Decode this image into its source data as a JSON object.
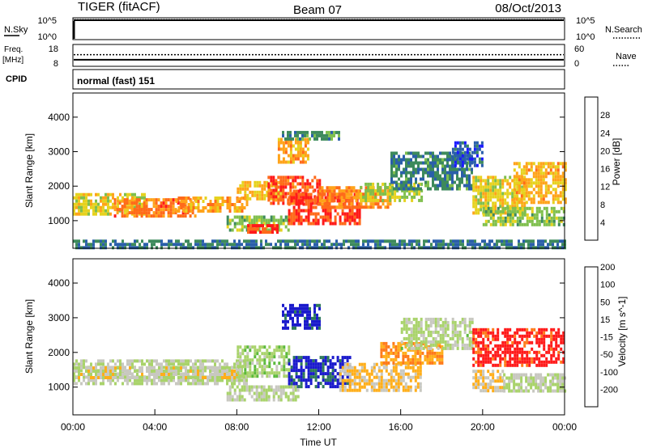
{
  "header": {
    "station": "TIGER (fitACF)",
    "beam": "Beam 07",
    "date": "08/Oct/2013"
  },
  "left_labels": {
    "nsky": "N.Sky",
    "freq_line1": "Freq.",
    "freq_line2": "[MHz]",
    "cpid": "CPID"
  },
  "right_labels": {
    "nsearch": "N.Search",
    "nave": "Nave"
  },
  "noise_panel": {
    "left_ticks": [
      "10^5",
      "10^0"
    ],
    "right_ticks": [
      "10^5",
      "10^0"
    ]
  },
  "freq_panel": {
    "left_ticks": [
      "18",
      "8"
    ],
    "right_ticks": [
      "60",
      "0"
    ],
    "freq_mhz": 11,
    "nave": 32
  },
  "cpid_text": "normal (fast) 151",
  "colors": {
    "power": [
      "#1a1aff",
      "#2a5faa",
      "#3d8a5c",
      "#7fbf4d",
      "#e6d21e",
      "#ffa31a",
      "#ff6a1a",
      "#ff1a1a"
    ],
    "velocity": [
      "#ff1a1a",
      "#ff7a1a",
      "#ffae1a",
      "#c8c8c0",
      "#a9d36b",
      "#5cba3c",
      "#2f7a5a",
      "#1a1acc"
    ],
    "ground_gray": "#c8c8c0"
  },
  "chart_data": [
    {
      "type": "heatmap",
      "quantity": "Power",
      "colorbar_label": "Power [dB]",
      "colorbar_ticks": [
        "4",
        "8",
        "12",
        "16",
        "20",
        "24",
        "28"
      ],
      "crange": [
        0,
        32
      ],
      "ylabel": "Slant Range [km]",
      "yticks": [
        "1000",
        "2000",
        "3000",
        "4000"
      ],
      "ylim": [
        200,
        4700
      ],
      "xlim": [
        0,
        24
      ],
      "features": [
        {
          "t": [
            0,
            3.5
          ],
          "r": [
            1150,
            1800
          ],
          "level": 18
        },
        {
          "t": [
            2,
            6
          ],
          "r": [
            1150,
            1650
          ],
          "level": 25
        },
        {
          "t": [
            5,
            8.5
          ],
          "r": [
            1300,
            1700
          ],
          "level": 22
        },
        {
          "t": [
            8,
            10.2
          ],
          "r": [
            1600,
            2150
          ],
          "level": 20
        },
        {
          "t": [
            9.5,
            12
          ],
          "r": [
            1500,
            2300
          ],
          "level": 27
        },
        {
          "t": [
            7.5,
            10.5
          ],
          "r": [
            700,
            1150
          ],
          "level": 14
        },
        {
          "t": [
            8.5,
            10
          ],
          "r": [
            650,
            900
          ],
          "level": 28
        },
        {
          "t": [
            10.5,
            14
          ],
          "r": [
            900,
            1900
          ],
          "level": 28
        },
        {
          "t": [
            12,
            15.5
          ],
          "r": [
            1400,
            2000
          ],
          "level": 24
        },
        {
          "t": [
            14,
            17
          ],
          "r": [
            1600,
            2100
          ],
          "level": 16
        },
        {
          "t": [
            15.5,
            19.5
          ],
          "r": [
            1900,
            3000
          ],
          "level": 9
        },
        {
          "t": [
            10,
            11.5
          ],
          "r": [
            2700,
            3400
          ],
          "level": 22
        },
        {
          "t": [
            10.2,
            13
          ],
          "r": [
            3400,
            3600
          ],
          "level": 10
        },
        {
          "t": [
            18.5,
            20
          ],
          "r": [
            2600,
            3300
          ],
          "level": 6
        },
        {
          "t": [
            19.5,
            22
          ],
          "r": [
            1200,
            2300
          ],
          "level": 18
        },
        {
          "t": [
            21.5,
            24
          ],
          "r": [
            1500,
            2700
          ],
          "level": 21
        },
        {
          "t": [
            20,
            24
          ],
          "r": [
            850,
            1400
          ],
          "level": 14
        },
        {
          "t": [
            0,
            24
          ],
          "r": [
            250,
            450
          ],
          "level": 8
        }
      ]
    },
    {
      "type": "heatmap",
      "quantity": "Velocity",
      "colorbar_label": "Velocity [m s^-1]",
      "colorbar_ticks": [
        "-200",
        "-100",
        "-50",
        "-15",
        "15",
        "50",
        "100",
        "200"
      ],
      "crange": [
        -250,
        250
      ],
      "ylabel": "Slant Range [km]",
      "yticks": [
        "1000",
        "2000",
        "3000",
        "4000"
      ],
      "ylim": [
        200,
        4700
      ],
      "xlim": [
        0,
        24
      ],
      "xlabel": "Time UT",
      "xticks": [
        "00:00",
        "04:00",
        "08:00",
        "12:00",
        "16:00",
        "20:00",
        "00:00"
      ],
      "features": [
        {
          "t": [
            0,
            8.5
          ],
          "r": [
            1100,
            1800
          ],
          "level": 0
        },
        {
          "t": [
            0,
            8
          ],
          "r": [
            1300,
            1600
          ],
          "level": -30
        },
        {
          "t": [
            8,
            10.5
          ],
          "r": [
            1300,
            2200
          ],
          "level": 40
        },
        {
          "t": [
            10.5,
            13.5
          ],
          "r": [
            1000,
            1900
          ],
          "level": 210
        },
        {
          "t": [
            13,
            17
          ],
          "r": [
            900,
            1700
          ],
          "level": -70
        },
        {
          "t": [
            15,
            18
          ],
          "r": [
            1700,
            2300
          ],
          "level": -120
        },
        {
          "t": [
            7.5,
            11
          ],
          "r": [
            600,
            1050
          ],
          "level": 0
        },
        {
          "t": [
            10.2,
            12
          ],
          "r": [
            2700,
            3400
          ],
          "level": 220
        },
        {
          "t": [
            16,
            19.5
          ],
          "r": [
            2100,
            3000
          ],
          "level": 10
        },
        {
          "t": [
            19.5,
            24
          ],
          "r": [
            1600,
            2700
          ],
          "level": -220
        },
        {
          "t": [
            19.5,
            21
          ],
          "r": [
            900,
            1500
          ],
          "level": -60
        },
        {
          "t": [
            21,
            24
          ],
          "r": [
            900,
            1400
          ],
          "level": 0
        }
      ]
    }
  ]
}
